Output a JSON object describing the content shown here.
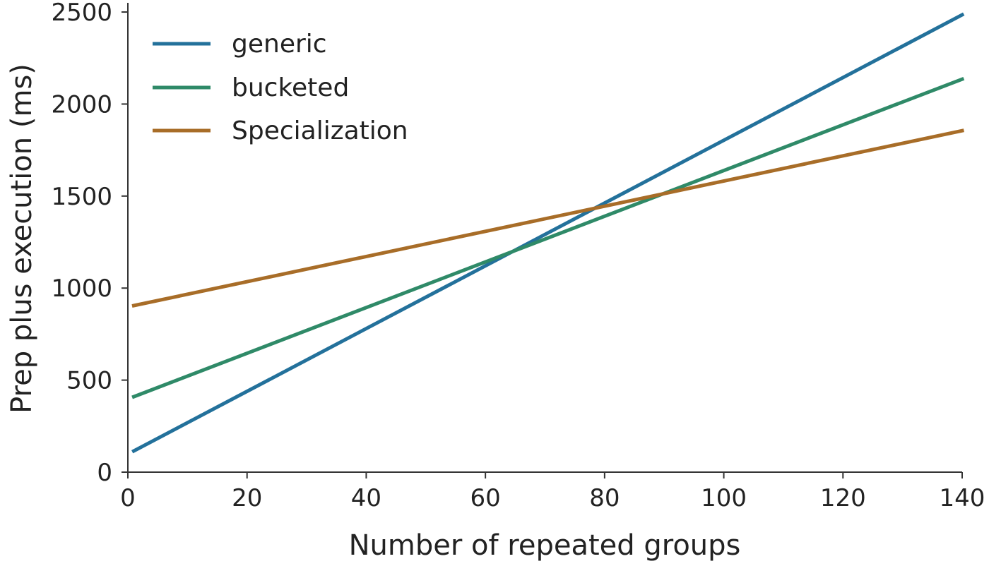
{
  "chart_data": {
    "type": "line",
    "xlabel": "Number of repeated groups",
    "ylabel": "Prep plus execution (ms)",
    "xlim": [
      0,
      140
    ],
    "ylim": [
      0,
      2550
    ],
    "x_ticks": [
      0,
      20,
      40,
      60,
      80,
      100,
      120,
      140
    ],
    "y_ticks": [
      0,
      500,
      1000,
      1500,
      2000,
      2500
    ],
    "grid": false,
    "legend_position": "top-left",
    "series": [
      {
        "name": "generic",
        "color": "#23719b",
        "x": [
          1,
          140
        ],
        "y": [
          115,
          2485
        ]
      },
      {
        "name": "bucketed",
        "color": "#2f8a68",
        "x": [
          1,
          140
        ],
        "y": [
          410,
          2135
        ]
      },
      {
        "name": "Specialization",
        "color": "#a86d28",
        "x": [
          1,
          140
        ],
        "y": [
          905,
          1855
        ]
      }
    ]
  }
}
